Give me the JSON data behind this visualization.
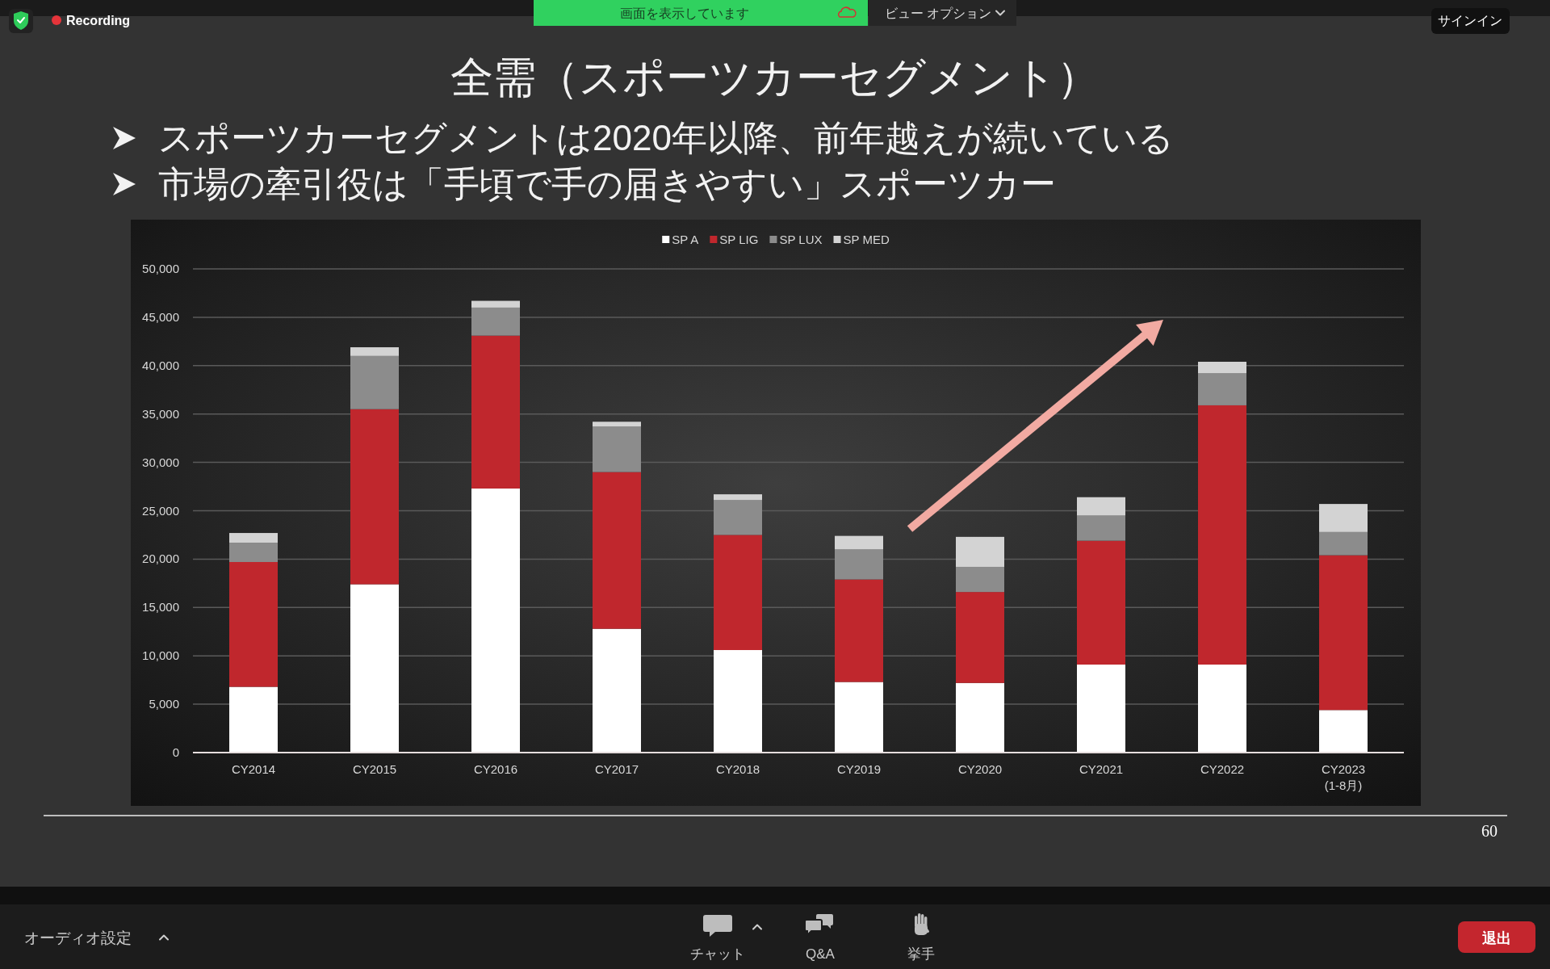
{
  "chart_data": {
    "type": "bar",
    "title": "全需（スポーツカーセグメント）",
    "categories": [
      "CY2014",
      "CY2015",
      "CY2016",
      "CY2017",
      "CY2018",
      "CY2019",
      "CY2020",
      "CY2021",
      "CY2022",
      "CY2023 (1-8月)"
    ],
    "series": [
      {
        "name": "SP A",
        "color": "#ffffff",
        "values": [
          6800,
          17400,
          27300,
          12800,
          10600,
          7300,
          7200,
          9100,
          9100,
          4400
        ]
      },
      {
        "name": "SP LIG",
        "color": "#c0272d",
        "values": [
          12900,
          18100,
          15800,
          16200,
          11900,
          10600,
          9400,
          12800,
          26800,
          16000
        ]
      },
      {
        "name": "SP LUX",
        "color": "#8c8c8c",
        "values": [
          2000,
          5500,
          2900,
          4700,
          3600,
          3100,
          2600,
          2600,
          3300,
          2400
        ]
      },
      {
        "name": "SP MED",
        "color": "#d3d3d3",
        "values": [
          1000,
          900,
          700,
          500,
          600,
          1400,
          3100,
          1900,
          1200,
          2900
        ]
      }
    ],
    "stacked": true,
    "ylim": [
      0,
      50000
    ],
    "yticks": [
      0,
      {
        "value": 5000,
        "label": "5,000"
      },
      {
        "value": 10000,
        "label": "10,000"
      },
      {
        "value": 15000,
        "label": "15,000"
      },
      {
        "value": 20000,
        "label": "20,000"
      },
      {
        "value": 25000,
        "label": "25,000"
      },
      {
        "value": 30000,
        "label": "30,000"
      },
      {
        "value": 35000,
        "label": "35,000"
      },
      {
        "value": 40000,
        "label": "40,000"
      },
      {
        "value": 45000,
        "label": "45,000"
      },
      {
        "value": 50000,
        "label": "50,000"
      }
    ],
    "grid": "y",
    "legend": "top",
    "annotations": [
      "スポーツカーセグメントは2020年以降、前年越えが続いている",
      "市場の牽引役は「手頃で手の届きやすい」スポーツカー",
      "60",
      "画面を表示しています",
      "ビュー オプション",
      "Recording",
      "サインイン",
      "オーディオ設定",
      "チャット",
      "Q&A",
      "挙手",
      "退出"
    ]
  }
}
